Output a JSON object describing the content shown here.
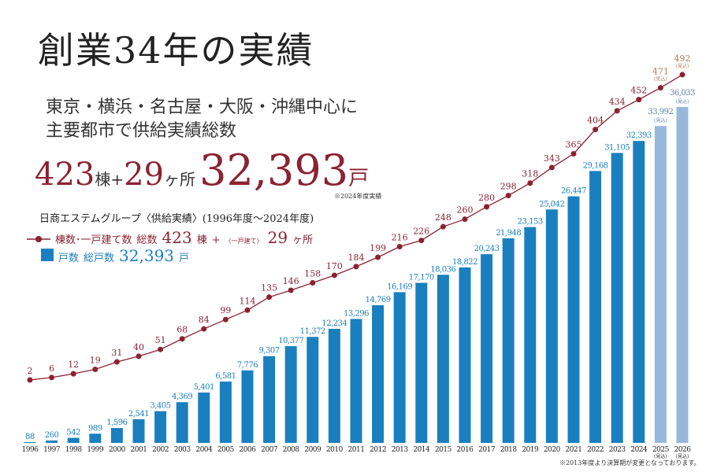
{
  "header": {
    "title": "創業34年の実績",
    "subtitle_line1": "東京・横浜・名古屋・大阪・沖縄中心に",
    "subtitle_line2": "主要都市で供給実績総数",
    "big_buildings": "423",
    "big_buildings_unit": "棟",
    "plus": "+",
    "big_sites": "29",
    "big_sites_unit": "ヶ所",
    "big_units": "32,393",
    "big_units_unit": "戸",
    "big_note": "※2024年度実績"
  },
  "legend": {
    "group_title": "日商エステムグループ〈供給実績〉(1996年度〜2024年度)",
    "line_label": "棟数･一戸建て数",
    "line_total_label": "総数",
    "line_total": "423",
    "line_total_unit": "棟",
    "line_plus": "+",
    "line_sub": "〈一戸建て〉",
    "line_sub_value": "29",
    "line_sub_unit": "ヶ所",
    "bar_label": "戸数",
    "bar_total_label": "総戸数",
    "bar_total": "32,393",
    "bar_total_unit": "戸"
  },
  "footnote": "※2013年度より決算期が変更となっております。",
  "colors": {
    "bar": "#1a7fbf",
    "bar_forecast": "#98b8db",
    "line": "#8b2231",
    "forecast_label": "#b07a55"
  },
  "chart_data": {
    "type": "bar+line",
    "categories": [
      "1996",
      "1997",
      "1998",
      "1999",
      "2000",
      "2001",
      "2002",
      "2003",
      "2004",
      "2005",
      "2006",
      "2007",
      "2008",
      "2009",
      "2010",
      "2011",
      "2012",
      "2013",
      "2014",
      "2015",
      "2016",
      "2017",
      "2018",
      "2019",
      "2020",
      "2021",
      "2022",
      "2023",
      "2024",
      "2025",
      "2026"
    ],
    "forecast_mark": "(見込)",
    "forecast_from": "2025",
    "series": [
      {
        "name": "戸数",
        "type": "bar",
        "values": [
          88,
          260,
          542,
          989,
          1596,
          2541,
          3405,
          4369,
          5401,
          6581,
          7776,
          9307,
          10377,
          11372,
          12234,
          13296,
          14769,
          16169,
          17170,
          18036,
          18822,
          20243,
          21948,
          23153,
          25042,
          26447,
          29168,
          31105,
          32393,
          33992,
          36033
        ],
        "labels": [
          "88",
          "260",
          "542",
          "989",
          "1,596",
          "2,541",
          "3,405",
          "4,369",
          "5,401",
          "6,581",
          "7,776",
          "9,307",
          "10,377",
          "11,372",
          "12,234",
          "13,296",
          "14,769",
          "16,169",
          "17,170",
          "18,036",
          "18,822",
          "20,243",
          "21,948",
          "23,153",
          "25,042",
          "26,447",
          "29,168",
          "31,105",
          "32,393",
          "33,992",
          "36,033"
        ]
      },
      {
        "name": "棟数･一戸建て数",
        "type": "line",
        "values": [
          2,
          6,
          12,
          19,
          31,
          40,
          51,
          68,
          84,
          99,
          114,
          135,
          146,
          158,
          170,
          184,
          199,
          216,
          226,
          248,
          260,
          280,
          298,
          318,
          343,
          365,
          404,
          434,
          452,
          471,
          492
        ]
      }
    ],
    "grid": false
  }
}
